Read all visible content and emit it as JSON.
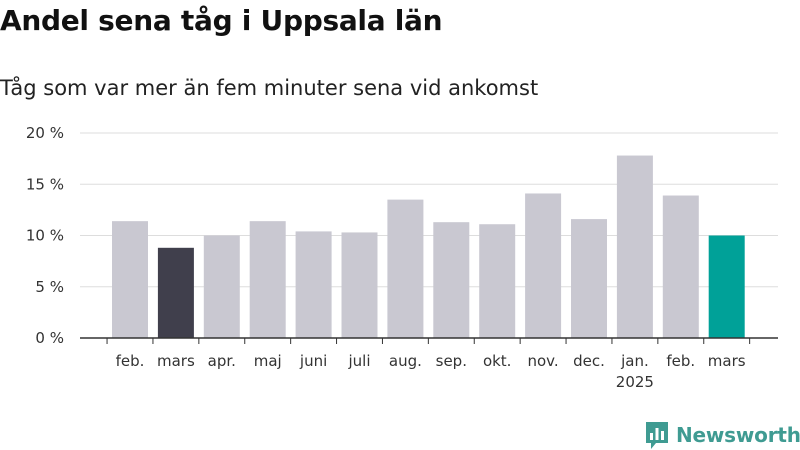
{
  "title": "Andel sena tåg i Uppsala län",
  "subtitle": "Tåg som var mer än fem minuter sena vid ankomst",
  "brand": {
    "name": "Newsworthy",
    "icon": "newsworthy-logo-icon",
    "color": "#3f9b92"
  },
  "chart_data": {
    "type": "bar",
    "title": "Andel sena tåg i Uppsala län",
    "subtitle": "Tåg som var mer än fem minuter sena vid ankomst",
    "categories": [
      "feb.",
      "mars",
      "apr.",
      "maj",
      "juni",
      "juli",
      "aug.",
      "sep.",
      "okt.",
      "nov.",
      "dec.",
      "jan.",
      "feb.",
      "mars"
    ],
    "year_labels": [
      "",
      "",
      "",
      "",
      "",
      "",
      "",
      "",
      "",
      "",
      "",
      "2025",
      "",
      ""
    ],
    "values": [
      11.4,
      8.8,
      10.0,
      11.4,
      10.4,
      10.3,
      13.5,
      11.3,
      11.1,
      14.1,
      11.6,
      17.8,
      13.9,
      10.0
    ],
    "bar_colors": [
      "#c9c8d1",
      "#403f4c",
      "#c9c8d1",
      "#c9c8d1",
      "#c9c8d1",
      "#c9c8d1",
      "#c9c8d1",
      "#c9c8d1",
      "#c9c8d1",
      "#c9c8d1",
      "#c9c8d1",
      "#c9c8d1",
      "#c9c8d1",
      "#00a198"
    ],
    "ylim": [
      0,
      20
    ],
    "yticks": [
      0,
      5,
      10,
      15,
      20
    ],
    "ytick_labels": [
      "0 %",
      "5 %",
      "10 %",
      "15 %",
      "20 %"
    ],
    "xlabel": "",
    "ylabel": "",
    "grid": true,
    "colors": {
      "default": "#c9c8d1",
      "highlight_previous": "#403f4c",
      "highlight_current": "#00a198",
      "grid": "#dddddd",
      "axis": "#333333"
    }
  }
}
